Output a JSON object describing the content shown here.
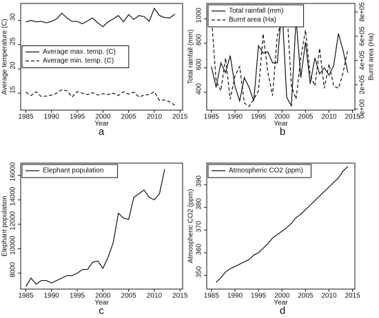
{
  "chart_data": [
    {
      "type": "line",
      "caption": "a",
      "xlabel": "Year",
      "ylabel": "Average temperature (C)",
      "xlim": [
        1984,
        2015.5
      ],
      "xticks": [
        1985,
        1990,
        1995,
        2000,
        2005,
        2010,
        2015
      ],
      "ylim": [
        11.5,
        33.5
      ],
      "yticks": [
        15,
        20,
        25,
        30
      ],
      "legend": "center left",
      "x": [
        1985,
        1986,
        1987,
        1988,
        1989,
        1990,
        1991,
        1992,
        1993,
        1994,
        1995,
        1996,
        1997,
        1998,
        1999,
        2000,
        2001,
        2002,
        2003,
        2004,
        2005,
        2006,
        2007,
        2008,
        2009,
        2010,
        2011,
        2012,
        2013,
        2014
      ],
      "series": [
        {
          "name": "Average max. temp. (C)",
          "color": "#111111",
          "linestyle": "solid",
          "values": [
            29.7,
            30.0,
            29.7,
            29.8,
            29.5,
            29.8,
            30.3,
            31.5,
            30.5,
            29.8,
            29.8,
            29.3,
            29.9,
            30.5,
            29.5,
            28.7,
            29.7,
            30.3,
            31.0,
            29.7,
            31.2,
            30.2,
            31.0,
            30.8,
            29.8,
            32.5,
            31.0,
            30.6,
            30.5,
            31.3
          ]
        },
        {
          "name": "Average min. temp. (C)",
          "color": "#111111",
          "linestyle": "dashed",
          "values": [
            15.2,
            14.5,
            15.3,
            14.3,
            14.4,
            14.6,
            15.0,
            15.7,
            15.5,
            14.2,
            15.3,
            15.0,
            14.7,
            15.1,
            14.6,
            14.9,
            14.7,
            15.0,
            14.5,
            15.3,
            14.8,
            15.2,
            14.2,
            14.6,
            14.7,
            15.3,
            13.5,
            13.6,
            13.2,
            12.5
          ]
        }
      ]
    },
    {
      "type": "line",
      "caption": "b",
      "xlabel": "Year",
      "ylabel": "Total rainfall (mm)",
      "y2label": "Burnt area (Ha)",
      "xlim": [
        1984,
        2015.5
      ],
      "xticks": [
        1985,
        1990,
        1995,
        2000,
        2005,
        2010,
        2015
      ],
      "ylim": [
        255,
        1125
      ],
      "yticks": [
        400,
        600,
        800,
        1000
      ],
      "y2lim": [
        -10000,
        870000
      ],
      "y2ticks": [
        {
          "value": 0,
          "label": "0e+00"
        },
        {
          "value": 200000,
          "label": "2e+05"
        },
        {
          "value": 400000,
          "label": "4e+05"
        },
        {
          "value": 600000,
          "label": "6e+05"
        },
        {
          "value": 800000,
          "label": "8e+05"
        }
      ],
      "legend": "upper left",
      "x": [
        1985,
        1986,
        1987,
        1988,
        1989,
        1990,
        1991,
        1992,
        1993,
        1994,
        1995,
        1996,
        1997,
        1998,
        1999,
        2000,
        2001,
        2002,
        2003,
        2004,
        2005,
        2006,
        2007,
        2008,
        2009,
        2010,
        2011,
        2012,
        2013,
        2014
      ],
      "series": [
        {
          "name": "Total rainfall (mm)",
          "color": "#111111",
          "linestyle": "solid",
          "values": [
            610,
            440,
            640,
            560,
            700,
            450,
            330,
            520,
            440,
            330,
            780,
            720,
            730,
            640,
            640,
            1100,
            360,
            290,
            1000,
            520,
            810,
            470,
            680,
            550,
            600,
            540,
            620,
            880,
            740,
            560
          ]
        },
        {
          "name": "Burnt area (Ha)",
          "color": "#111111",
          "linestyle": "dashed",
          "axis": "y2",
          "values": [
            760000,
            230000,
            150000,
            420000,
            80000,
            270000,
            350000,
            50000,
            20000,
            80000,
            150000,
            620000,
            300000,
            110000,
            600000,
            740000,
            850000,
            190000,
            80000,
            420000,
            650000,
            280000,
            190000,
            500000,
            170000,
            370000,
            190000,
            170000,
            300000,
            490000
          ]
        }
      ]
    },
    {
      "type": "line",
      "caption": "c",
      "xlabel": "Year",
      "ylabel": "Elephant population",
      "xlim": [
        1984,
        2015.5
      ],
      "xticks": [
        1985,
        1990,
        1995,
        2000,
        2005,
        2010,
        2015
      ],
      "ylim": [
        6700,
        17000
      ],
      "yticks": [
        8000,
        10000,
        12000,
        14000,
        16000
      ],
      "legend": "upper left",
      "x": [
        1985,
        1986,
        1987,
        1988,
        1989,
        1990,
        1991,
        1992,
        1993,
        1994,
        1995,
        1996,
        1997,
        1998,
        1999,
        2000,
        2001,
        2002,
        2003,
        2004,
        2005,
        2006,
        2007,
        2008,
        2009,
        2010,
        2011,
        2012
      ],
      "series": [
        {
          "name": "Elephant population",
          "color": "#111111",
          "linestyle": "solid",
          "values": [
            6900,
            7600,
            7100,
            7400,
            7400,
            7200,
            7400,
            7600,
            7800,
            7800,
            8000,
            8300,
            8300,
            8900,
            9000,
            8400,
            9300,
            10500,
            12900,
            12500,
            12400,
            14200,
            14500,
            14800,
            14200,
            14000,
            14500,
            16500
          ]
        }
      ]
    },
    {
      "type": "line",
      "caption": "d",
      "xlabel": "Year",
      "ylabel": "Atmospheric CO2 (ppm)",
      "xlim": [
        1984,
        2015.5
      ],
      "xticks": [
        1985,
        1990,
        1995,
        2000,
        2005,
        2010,
        2015
      ],
      "ylim": [
        344,
        399.5
      ],
      "yticks": [
        350,
        360,
        370,
        380,
        390
      ],
      "legend": "upper left",
      "x": [
        1986,
        1987,
        1988,
        1989,
        1990,
        1991,
        1992,
        1993,
        1994,
        1995,
        1996,
        1997,
        1998,
        1999,
        2000,
        2001,
        2002,
        2003,
        2004,
        2005,
        2006,
        2007,
        2008,
        2009,
        2010,
        2011,
        2012,
        2013,
        2014
      ],
      "series": [
        {
          "name": "Atmospheric CO2 (ppm)",
          "color": "#111111",
          "linestyle": "solid",
          "values": [
            347,
            349,
            351.5,
            353,
            354,
            355,
            356,
            357,
            359,
            360,
            362,
            364,
            366.5,
            368,
            369.5,
            371,
            373,
            375.5,
            377,
            379,
            381,
            383,
            385,
            387,
            389,
            391,
            393,
            396,
            398
          ]
        }
      ]
    }
  ]
}
